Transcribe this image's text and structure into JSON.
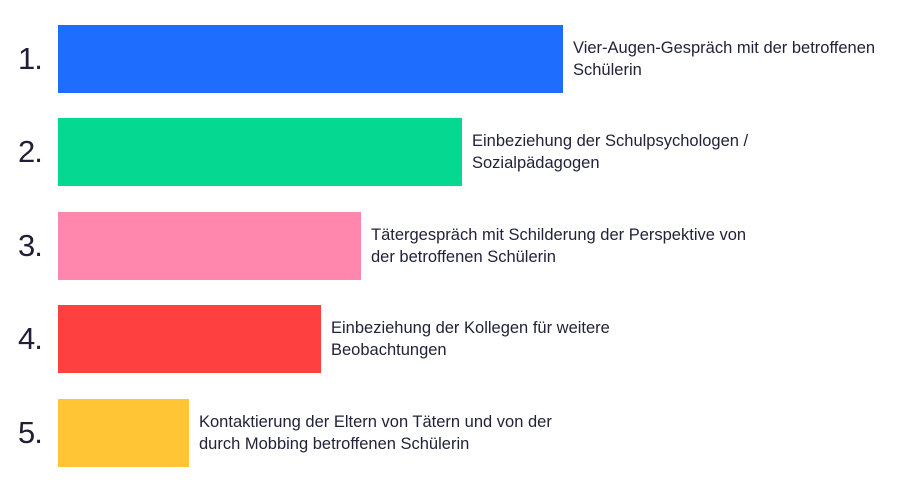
{
  "chart_data": {
    "type": "bar",
    "orientation": "horizontal",
    "title": "",
    "xlabel": "",
    "ylabel": "",
    "grid": false,
    "axes_visible": false,
    "categories": [
      "1.",
      "2.",
      "3.",
      "4.",
      "5."
    ],
    "values": [
      100,
      80,
      60,
      52,
      26
    ],
    "labels": [
      "Vier-Augen-Gespräch mit der betroffenen Schülerin",
      "Einbeziehung der Schulpsychologen / Sozialpädagogen",
      "Tätergespräch mit Schilderung der Perspektive von der betroffenen Schülerin",
      "Einbeziehung der Kollegen für weitere Beobachtungen",
      "Kontaktierung der Eltern von Tätern und von der durch Mobbing betroffenen Schülerin"
    ],
    "colors": [
      "#1f6dff",
      "#05d890",
      "#ff86ad",
      "#ff4040",
      "#ffc535"
    ]
  }
}
